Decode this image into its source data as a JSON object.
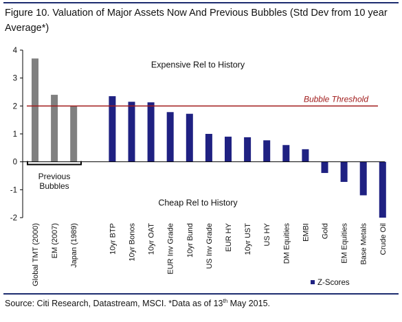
{
  "figure": {
    "title": "Figure 10. Valuation of Major Assets Now And Previous Bubbles (Std Dev from 10 year Average*)",
    "source_prefix": "Source: Citi Research, Datastream, MSCI. *Data as of 13",
    "source_sup": "th",
    "source_suffix": " May 2015."
  },
  "chart_data": {
    "type": "bar",
    "title": "Figure 10. Valuation of Major Assets Now And Previous Bubbles (Std Dev from 10 year Average*)",
    "xlabel": "",
    "ylabel": "",
    "ylim": [
      -2,
      4
    ],
    "yticks": [
      -2,
      -1,
      0,
      1,
      2,
      3,
      4
    ],
    "grid": false,
    "legend": "bottom-right",
    "colors": {
      "z_scores": "#1f2182",
      "previous_bubbles": "#808080",
      "threshold": "#a01a1a"
    },
    "previous_bubbles": [
      {
        "category": "Global TMT (2000)",
        "value": 3.7
      },
      {
        "category": "EM (2007)",
        "value": 2.4
      },
      {
        "category": "Japan (1989)",
        "value": 2.0
      }
    ],
    "previous_bubbles_label": "Previous\nBubbles",
    "series": [
      {
        "name": "Z-Scores",
        "categories": [
          "10yr BTP",
          "10yr Bonos",
          "10yr OAT",
          "EUR Inv Grade",
          "10yr Bund",
          "US Inv Grade",
          "EUR HY",
          "10yr UST",
          "US HY",
          "DM Equities",
          "EMBI",
          "Gold",
          "EM Equities",
          "Base Metals",
          "Crude Oil"
        ],
        "values": [
          2.35,
          2.15,
          2.13,
          1.78,
          1.72,
          1.0,
          0.9,
          0.88,
          0.77,
          0.6,
          0.45,
          -0.4,
          -0.72,
          -1.2,
          -2.0
        ]
      }
    ],
    "threshold": {
      "value": 2.0,
      "label": "Bubble Threshold"
    },
    "annotations": {
      "top": "Expensive Rel to History",
      "bottom": "Cheap Rel to History"
    }
  }
}
